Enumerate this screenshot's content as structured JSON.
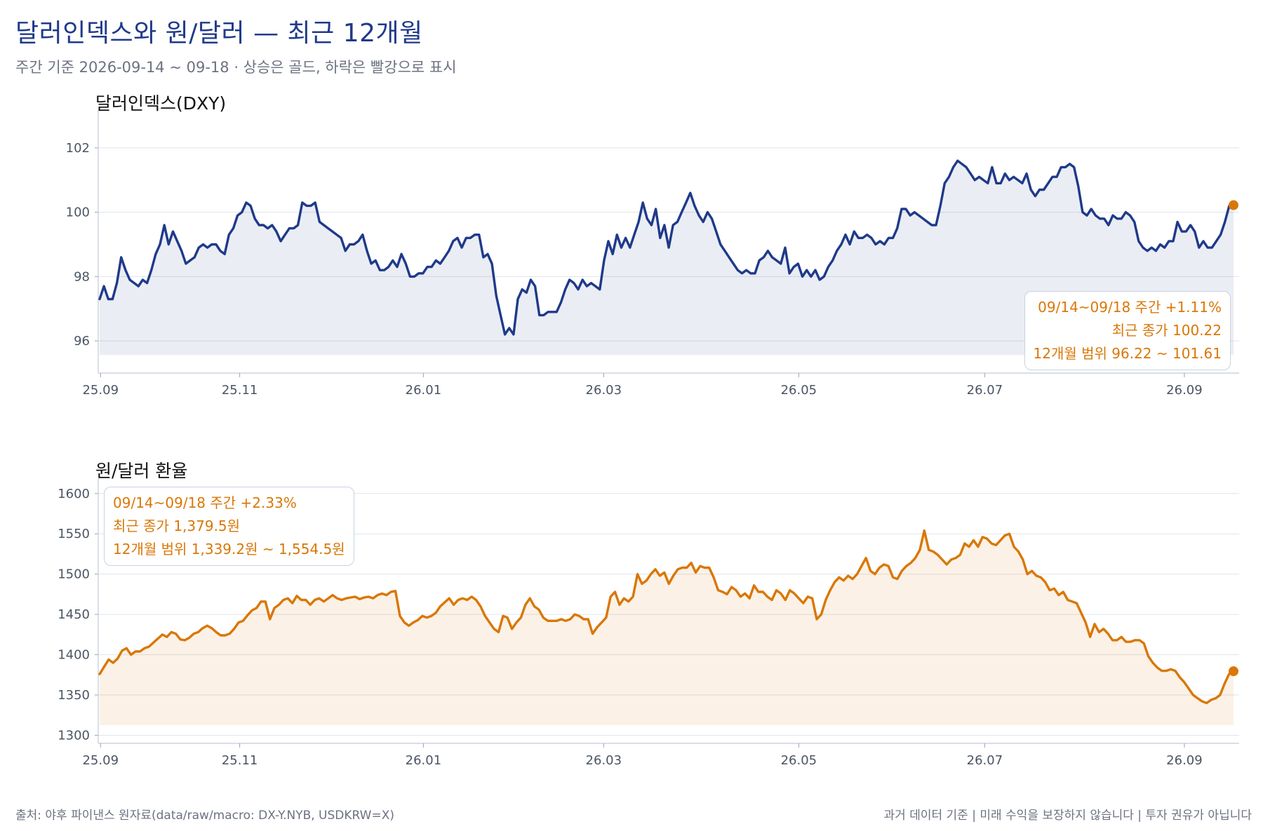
{
  "title": "달러인덱스와 원/달러 — 최근 12개월",
  "subtitle": "주간 기준 2026-09-14 ~ 09-18 · 상승은 골드, 하락은 빨강으로 표시",
  "footer": {
    "source": "출처: 야후 파이낸스 원자료(data/raw/macro: DX-Y.NYB, USDKRW=X)",
    "disclaimer": "과거 데이터 기준 | 미래 수익을 보장하지 않습니다 | 투자 권유가 아닙니다"
  },
  "colors": {
    "dxy": "#1f3a8a",
    "krw": "#d97706",
    "grid": "#dfe4ec"
  },
  "chart_data": [
    {
      "type": "line",
      "title": "달러인덱스(DXY)",
      "x_ticks": [
        "25.09",
        "25.11",
        "26.01",
        "26.03",
        "26.05",
        "26.07",
        "26.09"
      ],
      "y_ticks": [
        96,
        98,
        100,
        102
      ],
      "ylim": [
        95,
        103
      ],
      "grid": true,
      "series": [
        {
          "name": "",
          "color": "#1f3a8a",
          "values": [
            97.3,
            97.7,
            97.3,
            97.3,
            97.8,
            98.6,
            98.2,
            97.9,
            97.8,
            97.7,
            97.9,
            97.8,
            98.2,
            98.7,
            99.0,
            99.6,
            99.0,
            99.4,
            99.1,
            98.8,
            98.4,
            98.5,
            98.6,
            98.9,
            99.0,
            98.9,
            99.0,
            99.0,
            98.8,
            98.7,
            99.3,
            99.5,
            99.9,
            100.0,
            100.3,
            100.2,
            99.8,
            99.6,
            99.6,
            99.5,
            99.6,
            99.4,
            99.1,
            99.3,
            99.5,
            99.5,
            99.6,
            100.3,
            100.2,
            100.2,
            100.3,
            99.7,
            99.6,
            99.5,
            99.4,
            99.3,
            99.2,
            98.8,
            99.0,
            99.0,
            99.1,
            99.3,
            98.8,
            98.4,
            98.5,
            98.2,
            98.2,
            98.3,
            98.5,
            98.3,
            98.7,
            98.4,
            98.0,
            98.0,
            98.1,
            98.1,
            98.3,
            98.3,
            98.5,
            98.4,
            98.6,
            98.8,
            99.1,
            99.2,
            98.9,
            99.2,
            99.2,
            99.3,
            99.3,
            98.6,
            98.7,
            98.4,
            97.4,
            96.8,
            96.2,
            96.4,
            96.2,
            97.3,
            97.6,
            97.5,
            97.9,
            97.7,
            96.8,
            96.8,
            96.9,
            96.9,
            96.9,
            97.2,
            97.6,
            97.9,
            97.8,
            97.6,
            97.9,
            97.7,
            97.8,
            97.7,
            97.6,
            98.5,
            99.1,
            98.7,
            99.3,
            98.9,
            99.2,
            98.9,
            99.3,
            99.7,
            100.3,
            99.8,
            99.6,
            100.1,
            99.2,
            99.6,
            98.9,
            99.6,
            99.7,
            100.0,
            100.3,
            100.6,
            100.2,
            99.9,
            99.7,
            100.0,
            99.8,
            99.4,
            99.0,
            98.8,
            98.6,
            98.4,
            98.2,
            98.1,
            98.2,
            98.1,
            98.1,
            98.5,
            98.6,
            98.8,
            98.6,
            98.5,
            98.4,
            98.9,
            98.1,
            98.3,
            98.4,
            98.0,
            98.2,
            98.0,
            98.2,
            97.9,
            98.0,
            98.3,
            98.5,
            98.8,
            99.0,
            99.3,
            99.0,
            99.4,
            99.2,
            99.2,
            99.3,
            99.2,
            99.0,
            99.1,
            99.0,
            99.2,
            99.2,
            99.5,
            100.1,
            100.1,
            99.9,
            100.0,
            99.9,
            99.8,
            99.7,
            99.6,
            99.6,
            100.2,
            100.9,
            101.1,
            101.4,
            101.6,
            101.5,
            101.4,
            101.2,
            101.0,
            101.1,
            101.0,
            100.9,
            101.4,
            100.9,
            100.9,
            101.2,
            101.0,
            101.1,
            101.0,
            100.9,
            101.2,
            100.7,
            100.5,
            100.7,
            100.7,
            100.9,
            101.1,
            101.1,
            101.4,
            101.4,
            101.5,
            101.4,
            100.8,
            100.0,
            99.9,
            100.1,
            99.9,
            99.8,
            99.8,
            99.6,
            99.9,
            99.8,
            99.8,
            100.0,
            99.9,
            99.7,
            99.1,
            98.9,
            98.8,
            98.9,
            98.8,
            99.0,
            98.9,
            99.1,
            99.1,
            99.7,
            99.4,
            99.4,
            99.6,
            99.4,
            98.9,
            99.1,
            98.9,
            98.9,
            99.1,
            99.3,
            99.7,
            100.2,
            100.22
          ]
        }
      ],
      "last_point": {
        "value": 100.22
      },
      "annotation": {
        "line1": "09/14~09/18 주간  +1.11%",
        "line2": "최근 종가 100.22",
        "line3": "12개월 범위 96.22 ~ 101.61",
        "placement": "bottom-right"
      }
    },
    {
      "type": "line",
      "title": "원/달러 환율",
      "x_ticks": [
        "25.09",
        "25.11",
        "26.01",
        "26.03",
        "26.05",
        "26.07",
        "26.09"
      ],
      "y_ticks": [
        1300,
        1350,
        1400,
        1450,
        1500,
        1550,
        1600
      ],
      "ylim": [
        1290,
        1612
      ],
      "grid": true,
      "series": [
        {
          "name": "",
          "color": "#d97706",
          "values": [
            1376,
            1385,
            1394,
            1390,
            1395,
            1405,
            1408,
            1400,
            1404,
            1404,
            1408,
            1410,
            1415,
            1420,
            1425,
            1422,
            1428,
            1426,
            1419,
            1418,
            1421,
            1426,
            1428,
            1433,
            1436,
            1433,
            1428,
            1424,
            1424,
            1426,
            1432,
            1440,
            1442,
            1449,
            1455,
            1458,
            1466,
            1466,
            1444,
            1458,
            1462,
            1468,
            1470,
            1464,
            1473,
            1468,
            1468,
            1462,
            1468,
            1470,
            1466,
            1470,
            1474,
            1470,
            1468,
            1470,
            1471,
            1472,
            1469,
            1471,
            1472,
            1470,
            1474,
            1476,
            1474,
            1478,
            1479,
            1448,
            1440,
            1436,
            1440,
            1443,
            1448,
            1446,
            1448,
            1452,
            1460,
            1465,
            1470,
            1462,
            1468,
            1470,
            1468,
            1472,
            1468,
            1460,
            1448,
            1440,
            1432,
            1428,
            1448,
            1446,
            1432,
            1440,
            1446,
            1462,
            1470,
            1460,
            1456,
            1446,
            1442,
            1442,
            1442,
            1444,
            1442,
            1444,
            1450,
            1448,
            1444,
            1444,
            1426,
            1434,
            1440,
            1446,
            1472,
            1478,
            1462,
            1470,
            1466,
            1472,
            1500,
            1488,
            1492,
            1500,
            1506,
            1498,
            1502,
            1488,
            1498,
            1506,
            1508,
            1508,
            1514,
            1502,
            1510,
            1508,
            1508,
            1496,
            1480,
            1478,
            1475,
            1484,
            1480,
            1472,
            1476,
            1470,
            1486,
            1478,
            1478,
            1472,
            1468,
            1480,
            1476,
            1468,
            1480,
            1476,
            1470,
            1464,
            1472,
            1470,
            1444,
            1450,
            1468,
            1480,
            1490,
            1496,
            1492,
            1498,
            1494,
            1500,
            1510,
            1520,
            1504,
            1500,
            1508,
            1512,
            1510,
            1496,
            1494,
            1504,
            1510,
            1514,
            1520,
            1530,
            1554,
            1530,
            1528,
            1524,
            1518,
            1512,
            1518,
            1520,
            1524,
            1538,
            1534,
            1542,
            1534,
            1546,
            1544,
            1538,
            1536,
            1542,
            1548,
            1550,
            1534,
            1528,
            1518,
            1500,
            1504,
            1498,
            1496,
            1490,
            1480,
            1482,
            1474,
            1478,
            1468,
            1466,
            1464,
            1452,
            1440,
            1422,
            1438,
            1428,
            1432,
            1426,
            1418,
            1418,
            1422,
            1416,
            1416,
            1418,
            1418,
            1414,
            1398,
            1390,
            1384,
            1380,
            1380,
            1382,
            1380,
            1372,
            1366,
            1358,
            1350,
            1346,
            1342,
            1340,
            1344,
            1346,
            1350,
            1364,
            1376,
            1379.5
          ]
        }
      ],
      "last_point": {
        "value": 1379.5
      },
      "annotation": {
        "line1": "09/14~09/18 주간  +2.33%",
        "line2": "최근 종가 1,379.5원",
        "line3": "12개월 범위 1,339.2원 ~ 1,554.5원",
        "placement": "top-left"
      }
    }
  ]
}
